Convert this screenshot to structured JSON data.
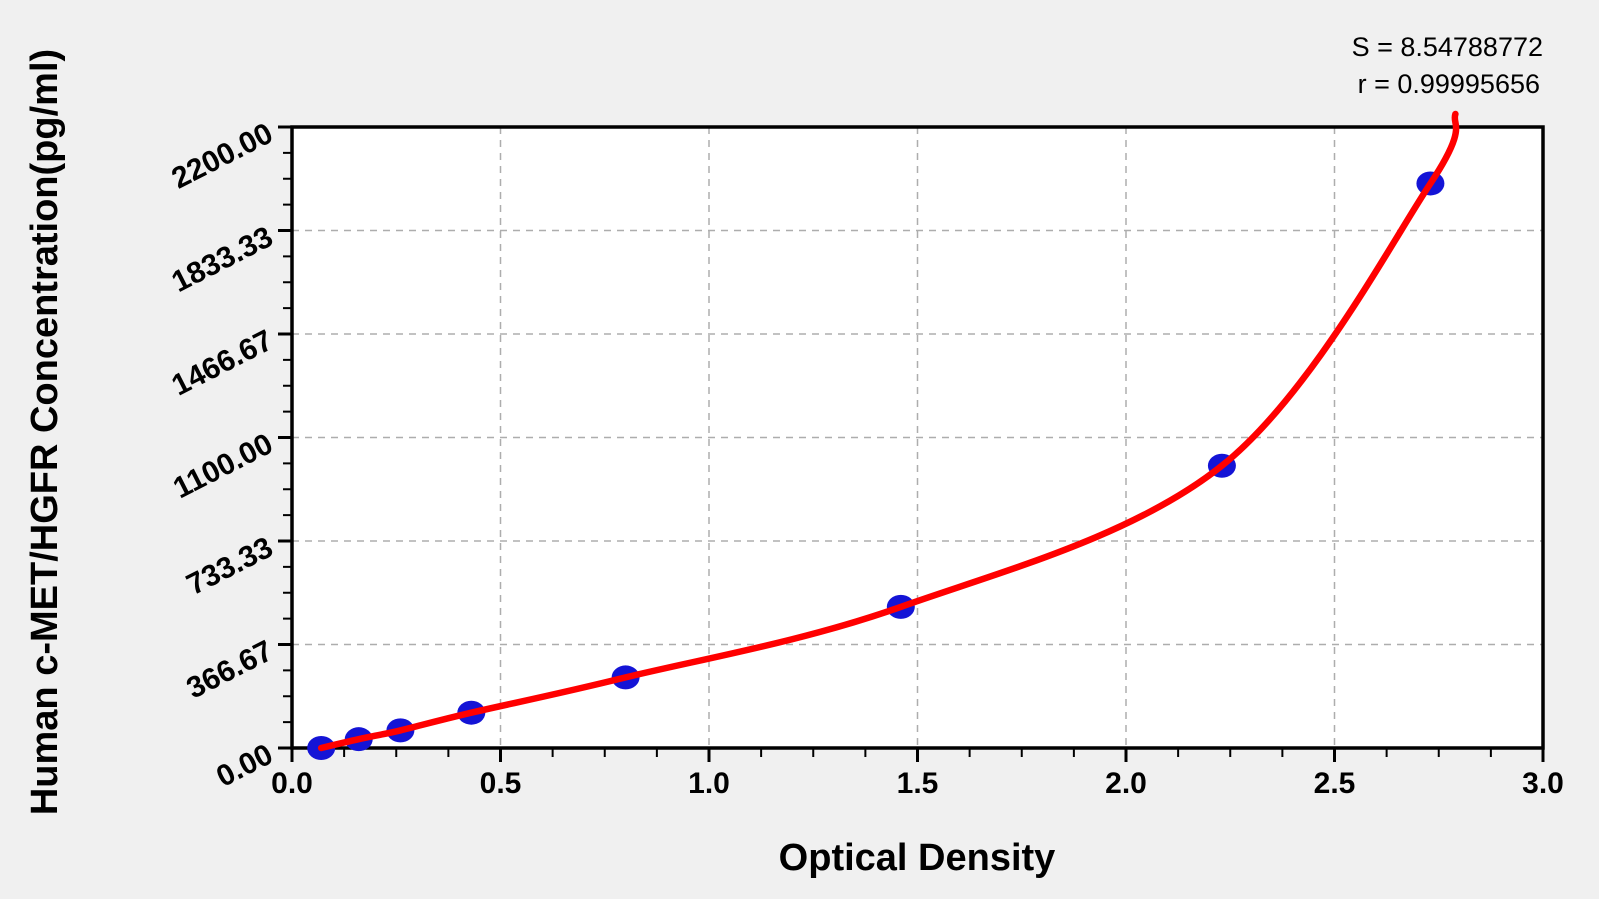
{
  "page": {
    "background": "#f0f0f0",
    "plot_background": "#ffffff"
  },
  "annotations": {
    "s_line": "S = 8.54788772",
    "r_line": "r = 0.99995656"
  },
  "chart_data": {
    "type": "scatter",
    "title": "",
    "xlabel": "Optical Density",
    "ylabel": "Human c-MET/HGFR Concentration(pg/ml)",
    "xlim": [
      0.0,
      3.0
    ],
    "ylim": [
      0.0,
      2200.0
    ],
    "x_major_ticks": [
      0.0,
      0.5,
      1.0,
      1.5,
      2.0,
      2.5,
      3.0
    ],
    "x_tick_labels": [
      "0.0",
      "0.5",
      "1.0",
      "1.5",
      "2.0",
      "2.5",
      "3.0"
    ],
    "y_major_ticks": [
      0.0,
      366.67,
      733.33,
      1100.0,
      1466.67,
      1833.33,
      2200.0
    ],
    "y_tick_labels": [
      "0.00",
      "366.67",
      "733.33",
      "1100.00",
      "1466.67",
      "1833.33",
      "2200.00"
    ],
    "minor_ticks_per_major": 3,
    "grid": {
      "show": true,
      "style": "dashed",
      "on": "major",
      "color": "#adadad"
    },
    "axis_color": "#000000",
    "legend": {
      "show": false
    },
    "series": [
      {
        "name": "calibration-standards",
        "type": "scatter",
        "marker": "circle",
        "color": "#1414d6",
        "points": [
          {
            "x": 0.07,
            "y": 0
          },
          {
            "x": 0.16,
            "y": 31.25
          },
          {
            "x": 0.26,
            "y": 62.5
          },
          {
            "x": 0.43,
            "y": 125
          },
          {
            "x": 0.8,
            "y": 250
          },
          {
            "x": 1.46,
            "y": 500
          },
          {
            "x": 2.23,
            "y": 1000
          },
          {
            "x": 2.73,
            "y": 2000
          }
        ]
      }
    ],
    "fit_curve": {
      "name": "regression-curve",
      "color": "#ff0000",
      "extends_to": {
        "x": 2.79,
        "y": 2246
      }
    },
    "stats": {
      "S": "8.54788772",
      "r": "0.99995656"
    }
  }
}
